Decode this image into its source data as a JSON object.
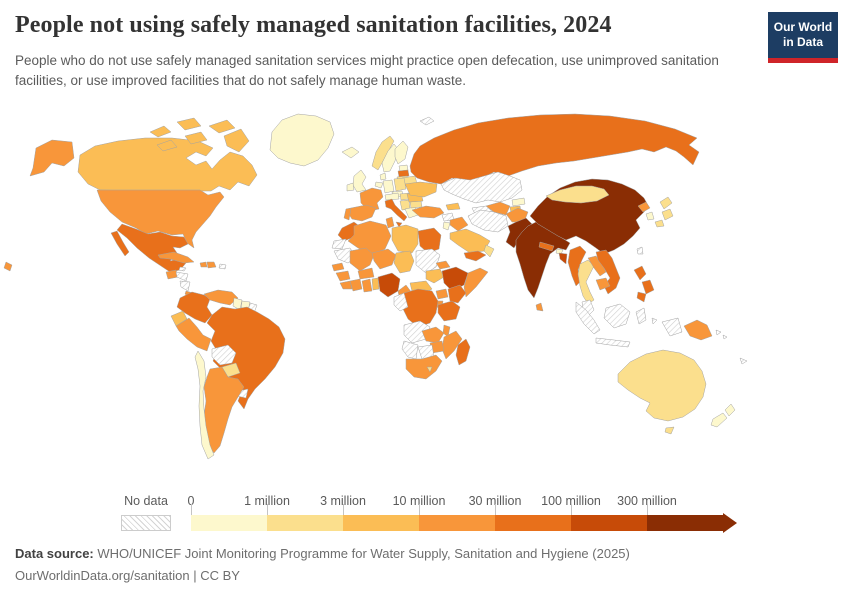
{
  "header": {
    "title": "People not using safely managed sanitation facilities, 2024",
    "subtitle": "People who do not use safely managed sanitation services might practice open defecation, use unimproved sanitation facilities, or use improved facilities that do not safely manage human waste."
  },
  "logo": {
    "line1": "Our World",
    "line2": "in Data",
    "bg_color": "#1d3d63",
    "accent_color": "#cf2429"
  },
  "legend": {
    "no_data_label": "No data",
    "ticks": [
      "0",
      "1 million",
      "3 million",
      "10 million",
      "30 million",
      "100 million",
      "300 million"
    ]
  },
  "footer": {
    "source_prefix": "Data source:",
    "source_text": " WHO/UNICEF Joint Monitoring Programme for Water Supply, Sanitation and Hygiene (2025)",
    "attribution": "OurWorldinData.org/sanitation | CC BY"
  },
  "chart_data": {
    "type": "choropleth",
    "title": "People not using safely managed sanitation facilities",
    "year": "2024",
    "unit": "people",
    "legend_position": "bottom",
    "bin_labels": [
      "No data",
      "0–1 million",
      "1–3 million",
      "3–10 million",
      "10–30 million",
      "30–100 million",
      "100–300 million",
      "300+ million"
    ],
    "bin_colors": [
      "#fdf8cd",
      "#fbdf8d",
      "#fbbd55",
      "#f8963a",
      "#e8701b",
      "#c74b08",
      "#8a2d04"
    ],
    "no_data_style": "gray diagonal hatch",
    "countries": [
      {
        "id": "greenland",
        "name": "Greenland",
        "bin": 1
      },
      {
        "id": "iceland",
        "name": "Iceland",
        "bin": 1
      },
      {
        "id": "canada",
        "name": "Canada",
        "bin": 3
      },
      {
        "id": "usa",
        "name": "United States",
        "bin": 4
      },
      {
        "id": "mexico",
        "name": "Mexico",
        "bin": 5
      },
      {
        "id": "guatemala",
        "name": "Guatemala",
        "bin": 4
      },
      {
        "id": "honduras",
        "name": "Honduras",
        "bin": 0
      },
      {
        "id": "nicaragua",
        "name": "Nicaragua",
        "bin": 0
      },
      {
        "id": "costa-rica",
        "name": "Costa Rica",
        "bin": 4
      },
      {
        "id": "panama",
        "name": "Panama",
        "bin": 4
      },
      {
        "id": "cuba",
        "name": "Cuba",
        "bin": 4
      },
      {
        "id": "jamaica",
        "name": "Jamaica",
        "bin": 0
      },
      {
        "id": "haiti",
        "name": "Haiti",
        "bin": 4
      },
      {
        "id": "dominican-republic",
        "name": "Dominican Republic",
        "bin": 4
      },
      {
        "id": "puerto-rico",
        "name": "Puerto Rico",
        "bin": 0
      },
      {
        "id": "colombia",
        "name": "Colombia",
        "bin": 5
      },
      {
        "id": "venezuela",
        "name": "Venezuela",
        "bin": 4
      },
      {
        "id": "guyana",
        "name": "Guyana",
        "bin": 1
      },
      {
        "id": "suriname",
        "name": "Suriname",
        "bin": 1
      },
      {
        "id": "french-guiana",
        "name": "French Guiana",
        "bin": 0
      },
      {
        "id": "ecuador",
        "name": "Ecuador",
        "bin": 3
      },
      {
        "id": "peru",
        "name": "Peru",
        "bin": 4
      },
      {
        "id": "brazil",
        "name": "Brazil",
        "bin": 5
      },
      {
        "id": "bolivia",
        "name": "Bolivia",
        "bin": 0
      },
      {
        "id": "paraguay",
        "name": "Paraguay",
        "bin": 2
      },
      {
        "id": "uruguay",
        "name": "Uruguay",
        "bin": 0
      },
      {
        "id": "chile",
        "name": "Chile",
        "bin": 1
      },
      {
        "id": "argentina",
        "name": "Argentina",
        "bin": 4
      },
      {
        "id": "united-kingdom",
        "name": "United Kingdom",
        "bin": 1
      },
      {
        "id": "ireland",
        "name": "Ireland",
        "bin": 1
      },
      {
        "id": "norway",
        "name": "Norway",
        "bin": 2
      },
      {
        "id": "sweden",
        "name": "Sweden",
        "bin": 1
      },
      {
        "id": "finland",
        "name": "Finland",
        "bin": 1
      },
      {
        "id": "denmark",
        "name": "Denmark",
        "bin": 1
      },
      {
        "id": "netherlands",
        "name": "Netherlands",
        "bin": 1
      },
      {
        "id": "germany",
        "name": "Germany",
        "bin": 1
      },
      {
        "id": "poland",
        "name": "Poland",
        "bin": 2
      },
      {
        "id": "czechia",
        "name": "Czechia",
        "bin": 1
      },
      {
        "id": "austria",
        "name": "Austria",
        "bin": 1
      },
      {
        "id": "france",
        "name": "France",
        "bin": 4
      },
      {
        "id": "spain",
        "name": "Spain",
        "bin": 4
      },
      {
        "id": "portugal",
        "name": "Portugal",
        "bin": 4
      },
      {
        "id": "italy",
        "name": "Italy",
        "bin": 5
      },
      {
        "id": "hungary",
        "name": "Hungary",
        "bin": 2
      },
      {
        "id": "serbia",
        "name": "Serbia",
        "bin": 2
      },
      {
        "id": "greece",
        "name": "Greece",
        "bin": 1
      },
      {
        "id": "bulgaria",
        "name": "Bulgaria",
        "bin": 2
      },
      {
        "id": "romania",
        "name": "Romania",
        "bin": 3
      },
      {
        "id": "estonia",
        "name": "Estonia",
        "bin": 1
      },
      {
        "id": "latvia",
        "name": "Latvia",
        "bin": 5
      },
      {
        "id": "lithuania",
        "name": "Lithuania",
        "bin": 2
      },
      {
        "id": "belarus",
        "name": "Belarus",
        "bin": 2
      },
      {
        "id": "ukraine",
        "name": "Ukraine",
        "bin": 3
      },
      {
        "id": "turkey",
        "name": "Turkey",
        "bin": 4
      },
      {
        "id": "russia",
        "name": "Russia",
        "bin": 5
      },
      {
        "id": "kazakhstan",
        "name": "Kazakhstan",
        "bin": 0
      },
      {
        "id": "uzbekistan",
        "name": "Uzbekistan",
        "bin": 4
      },
      {
        "id": "turkmenistan",
        "name": "Turkmenistan",
        "bin": 0
      },
      {
        "id": "kyrgyzstan",
        "name": "Kyrgyzstan",
        "bin": 1
      },
      {
        "id": "tajikistan",
        "name": "Tajikistan",
        "bin": 3
      },
      {
        "id": "georgia",
        "name": "Georgia",
        "bin": 3
      },
      {
        "id": "syria",
        "name": "Syria",
        "bin": 0
      },
      {
        "id": "iraq",
        "name": "Iraq",
        "bin": 4
      },
      {
        "id": "jordan",
        "name": "Jordan",
        "bin": 1
      },
      {
        "id": "iran",
        "name": "Iran",
        "bin": 0
      },
      {
        "id": "saudi-arabia",
        "name": "Saudi Arabia",
        "bin": 3
      },
      {
        "id": "yemen",
        "name": "Yemen",
        "bin": 5
      },
      {
        "id": "oman",
        "name": "Oman",
        "bin": 2
      },
      {
        "id": "afghanistan",
        "name": "Afghanistan",
        "bin": 4
      },
      {
        "id": "pakistan",
        "name": "Pakistan",
        "bin": 7
      },
      {
        "id": "india",
        "name": "India",
        "bin": 7
      },
      {
        "id": "nepal",
        "name": "Nepal",
        "bin": 5
      },
      {
        "id": "bhutan",
        "name": "Bhutan",
        "bin": 1
      },
      {
        "id": "bangladesh",
        "name": "Bangladesh",
        "bin": 6
      },
      {
        "id": "sri-lanka",
        "name": "Sri Lanka",
        "bin": 4
      },
      {
        "id": "china",
        "name": "China",
        "bin": 7
      },
      {
        "id": "mongolia",
        "name": "Mongolia",
        "bin": 2
      },
      {
        "id": "north-korea",
        "name": "North Korea",
        "bin": 4
      },
      {
        "id": "south-korea",
        "name": "South Korea",
        "bin": 1
      },
      {
        "id": "japan",
        "name": "Japan",
        "bin": 2
      },
      {
        "id": "taiwan",
        "name": "Taiwan",
        "bin": 0
      },
      {
        "id": "myanmar",
        "name": "Myanmar",
        "bin": 5
      },
      {
        "id": "thailand",
        "name": "Thailand",
        "bin": 2
      },
      {
        "id": "laos",
        "name": "Laos",
        "bin": 4
      },
      {
        "id": "vietnam",
        "name": "Vietnam",
        "bin": 5
      },
      {
        "id": "cambodia",
        "name": "Cambodia",
        "bin": 4
      },
      {
        "id": "malaysia",
        "name": "Malaysia",
        "bin": 0
      },
      {
        "id": "indonesia",
        "name": "Indonesia",
        "bin": 0
      },
      {
        "id": "philippines",
        "name": "Philippines",
        "bin": 5
      },
      {
        "id": "papua-new-guinea",
        "name": "Papua New Guinea",
        "bin": 4
      },
      {
        "id": "solomon-islands",
        "name": "Solomon Islands",
        "bin": 0
      },
      {
        "id": "new-caledonia",
        "name": "New Caledonia",
        "bin": 0
      },
      {
        "id": "fiji",
        "name": "Fiji",
        "bin": 4
      },
      {
        "id": "australia",
        "name": "Australia",
        "bin": 2
      },
      {
        "id": "new-zealand",
        "name": "New Zealand",
        "bin": 1
      },
      {
        "id": "morocco",
        "name": "Morocco",
        "bin": 5
      },
      {
        "id": "western-sahara",
        "name": "Western Sahara",
        "bin": 0
      },
      {
        "id": "algeria",
        "name": "Algeria",
        "bin": 4
      },
      {
        "id": "tunisia",
        "name": "Tunisia",
        "bin": 4
      },
      {
        "id": "libya",
        "name": "Libya",
        "bin": 3
      },
      {
        "id": "egypt",
        "name": "Egypt",
        "bin": 5
      },
      {
        "id": "mauritania",
        "name": "Mauritania",
        "bin": 0
      },
      {
        "id": "mali",
        "name": "Mali",
        "bin": 4
      },
      {
        "id": "niger",
        "name": "Niger",
        "bin": 4
      },
      {
        "id": "chad",
        "name": "Chad",
        "bin": 3
      },
      {
        "id": "sudan",
        "name": "Sudan",
        "bin": 0
      },
      {
        "id": "south-sudan",
        "name": "South Sudan",
        "bin": 3
      },
      {
        "id": "eritrea",
        "name": "Eritrea",
        "bin": 4
      },
      {
        "id": "ethiopia",
        "name": "Ethiopia",
        "bin": 6
      },
      {
        "id": "somalia",
        "name": "Somalia",
        "bin": 4
      },
      {
        "id": "senegal",
        "name": "Senegal",
        "bin": 4
      },
      {
        "id": "guinea",
        "name": "Guinea",
        "bin": 4
      },
      {
        "id": "sierra-leone",
        "name": "Sierra Leone",
        "bin": 4
      },
      {
        "id": "ivory-coast",
        "name": "Cote d'Ivoire",
        "bin": 4
      },
      {
        "id": "ghana",
        "name": "Ghana",
        "bin": 4
      },
      {
        "id": "benin",
        "name": "Benin",
        "bin": 3
      },
      {
        "id": "burkina-faso",
        "name": "Burkina Faso",
        "bin": 4
      },
      {
        "id": "nigeria",
        "name": "Nigeria",
        "bin": 6
      },
      {
        "id": "cameroon",
        "name": "Cameroon",
        "bin": 4
      },
      {
        "id": "central-african-republic",
        "name": "Central African Republic",
        "bin": 3
      },
      {
        "id": "congo",
        "name": "Congo",
        "bin": 0
      },
      {
        "id": "drc",
        "name": "Democratic Republic of Congo",
        "bin": 5
      },
      {
        "id": "uganda",
        "name": "Uganda",
        "bin": 4
      },
      {
        "id": "kenya",
        "name": "Kenya",
        "bin": 5
      },
      {
        "id": "rwanda",
        "name": "Rwanda",
        "bin": 4
      },
      {
        "id": "tanzania",
        "name": "Tanzania",
        "bin": 5
      },
      {
        "id": "angola",
        "name": "Angola",
        "bin": 0
      },
      {
        "id": "zambia",
        "name": "Zambia",
        "bin": 4
      },
      {
        "id": "malawi",
        "name": "Malawi",
        "bin": 4
      },
      {
        "id": "mozambique",
        "name": "Mozambique",
        "bin": 4
      },
      {
        "id": "zimbabwe",
        "name": "Zimbabwe",
        "bin": 4
      },
      {
        "id": "botswana",
        "name": "Botswana",
        "bin": 0
      },
      {
        "id": "namibia",
        "name": "Namibia",
        "bin": 0
      },
      {
        "id": "south-africa",
        "name": "South Africa",
        "bin": 4
      },
      {
        "id": "lesotho",
        "name": "Lesotho",
        "bin": 2
      },
      {
        "id": "madagascar",
        "name": "Madagascar",
        "bin": 5
      },
      {
        "id": "svalbard",
        "name": "Svalbard",
        "bin": 0
      }
    ]
  }
}
